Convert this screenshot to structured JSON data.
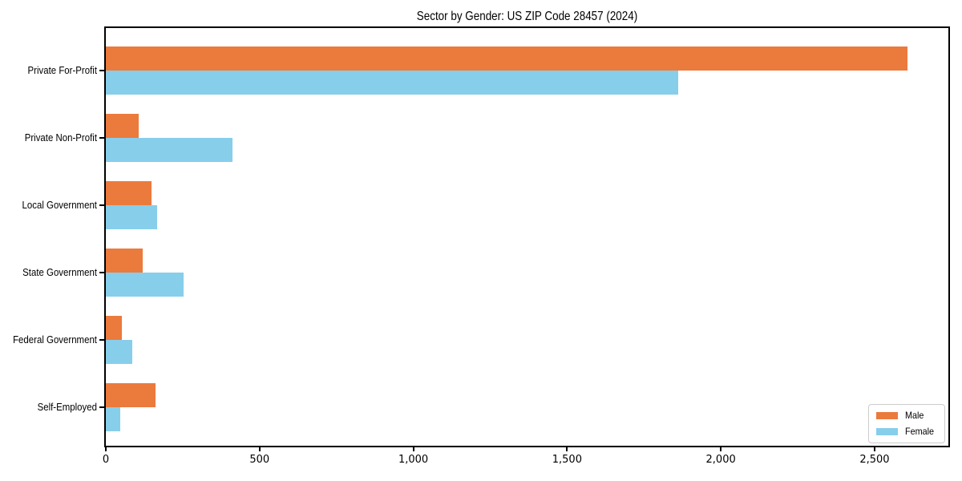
{
  "chart_data": {
    "type": "bar",
    "orientation": "horizontal",
    "title": "Sector by Gender: US ZIP Code 28457 (2024)",
    "categories": [
      "Private For-Profit",
      "Private Non-Profit",
      "Local Government",
      "State Government",
      "Federal Government",
      "Self-Employed"
    ],
    "series": [
      {
        "name": "Male",
        "color": "#eb7a3d",
        "values": [
          2607,
          107,
          148,
          120,
          53,
          162
        ]
      },
      {
        "name": "Female",
        "color": "#87ceeb",
        "values": [
          1862,
          411,
          168,
          252,
          87,
          48
        ]
      }
    ],
    "xlabel": "",
    "ylabel": "",
    "xlim": [
      0,
      2740
    ],
    "x_ticks": [
      0,
      500,
      1000,
      1500,
      2000,
      2500
    ],
    "x_tick_labels": [
      "0",
      "500",
      "1,000",
      "1,500",
      "2,000",
      "2,500"
    ],
    "grid": false,
    "legend": {
      "position": "lower right"
    }
  }
}
